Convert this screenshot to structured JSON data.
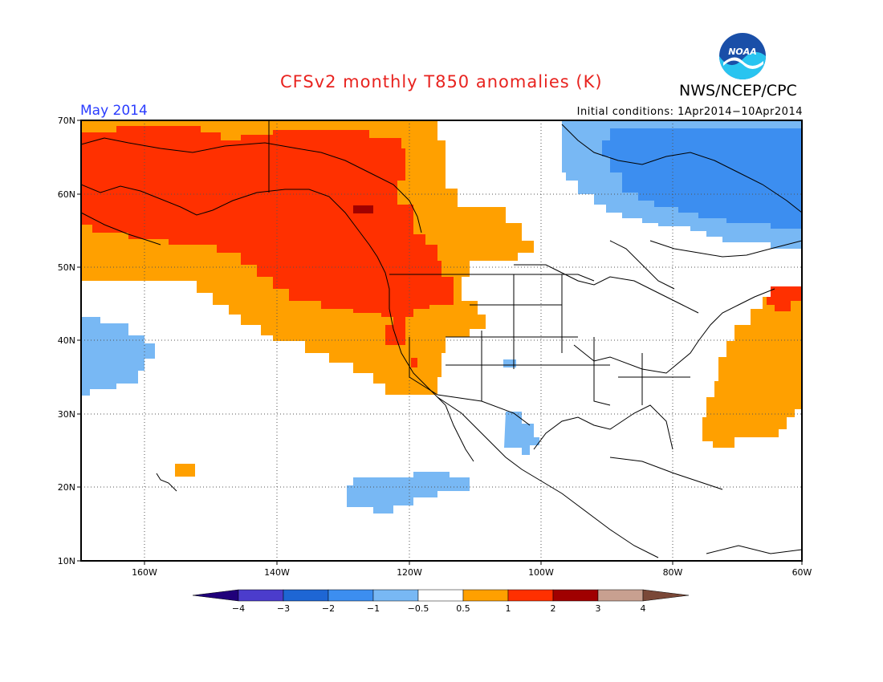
{
  "title": "CFSv2 monthly T850 anomalies (K)",
  "agency": "NWS/NCEP/CPC",
  "logo_text": "NOAA",
  "month": "May 2014",
  "initial_conditions": "Initial conditions: 1Apr2014−10Apr2014",
  "lat_labels": [
    "70N",
    "60N",
    "50N",
    "40N",
    "30N",
    "20N",
    "10N"
  ],
  "lon_labels": [
    "160W",
    "140W",
    "120W",
    "100W",
    "80W",
    "60W"
  ],
  "colorbar": {
    "labels": [
      "−4",
      "−3",
      "−2",
      "−1",
      "−0.5",
      "0.5",
      "1",
      "2",
      "3",
      "4"
    ],
    "colors": [
      "#20007a",
      "#4b3ccc",
      "#1e66d4",
      "#3c8ef0",
      "#78b8f4",
      "#ffffff",
      "#ffa000",
      "#ff3000",
      "#a00000",
      "#c8a090",
      "#7a4838"
    ]
  },
  "anomaly_regions": [
    {
      "category": "0.5 to 1",
      "color": "#ffa000"
    },
    {
      "category": "1 to 2",
      "color": "#ff3000"
    },
    {
      "category": "2 to 3",
      "color": "#a00000"
    },
    {
      "category": "-1 to -0.5",
      "color": "#78b8f4"
    },
    {
      "category": "-2 to -1",
      "color": "#3c8ef0"
    }
  ]
}
